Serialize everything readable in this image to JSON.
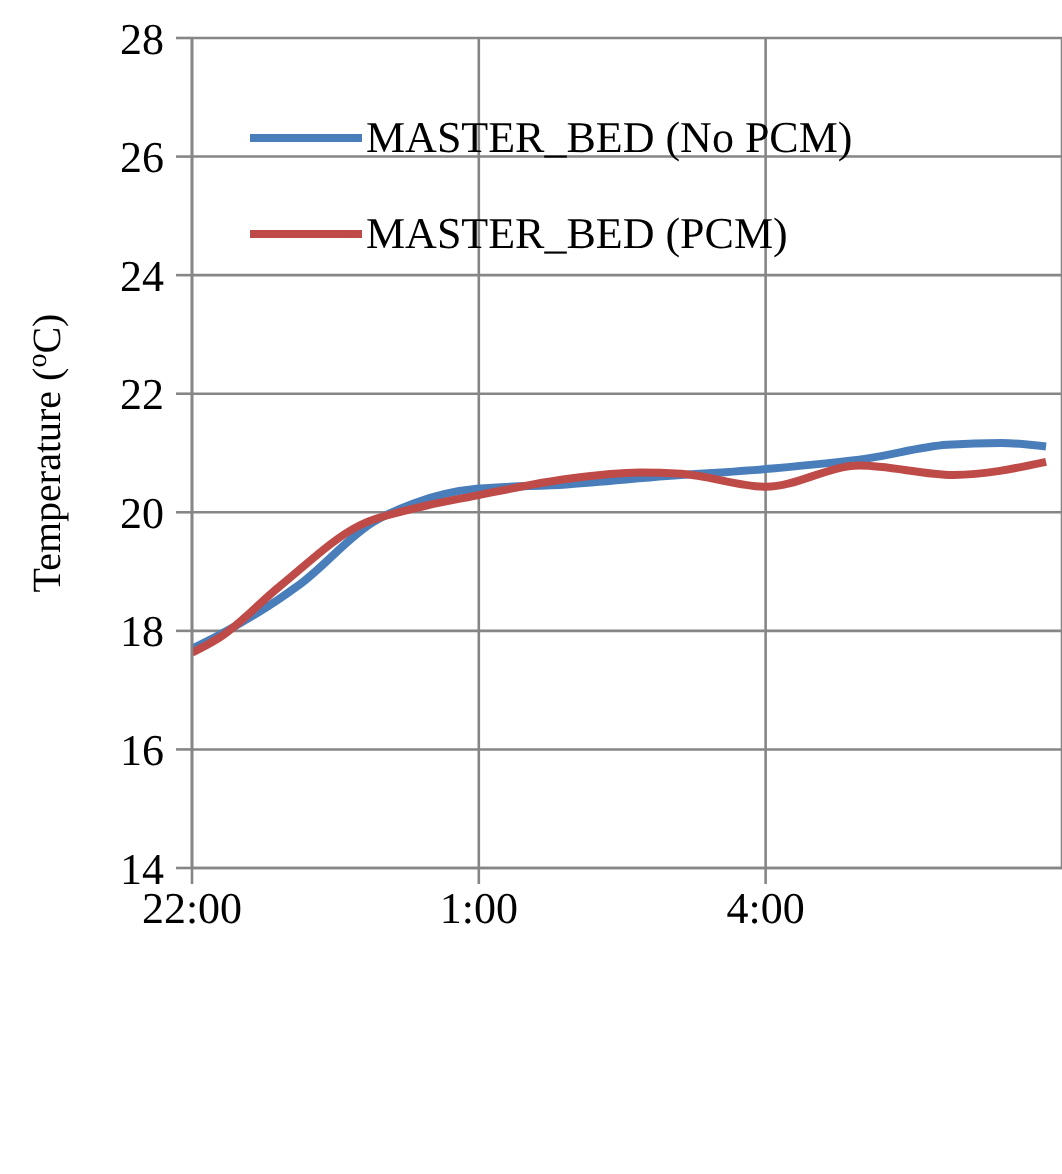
{
  "chart_data": {
    "type": "line",
    "ylabel": "Temperature ($^{o}$C)",
    "xlim": [
      "--01-01T22:00",
      "--01-02T07:06"
    ],
    "xticks": [
      {
        "value": "--01-01T22:00",
        "label": "22:00"
      },
      {
        "value": "--01-02T01:00",
        "label": "1:00"
      },
      {
        "value": "--01-02T04:00",
        "label": "4:00"
      }
    ],
    "ylim": [
      14,
      28
    ],
    "yticks": [
      14,
      16,
      18,
      20,
      22,
      24,
      26,
      28
    ],
    "grid": true,
    "legend": "top",
    "marker": "none",
    "line_style": "solid",
    "series": [
      {
        "name": "MASTER_BED (No PCM)",
        "color": "#4a7ebb",
        "x": [
          "--01-01T22:00",
          "--01-01T22:17",
          "--01-01T23:08",
          "--01-01T23:54",
          "--01-02T00:19",
          "--01-02T01:00",
          "--01-02T01:55",
          "--01-02T02:58",
          "--01-02T04:00",
          "--01-02T05:04",
          "--01-02T05:54",
          "--01-02T06:28",
          "--01-02T06:56"
        ],
        "values": [
          17.7,
          17.93,
          18.79,
          19.84,
          20.15,
          20.4,
          20.47,
          20.61,
          20.73,
          20.91,
          21.14,
          21.17,
          21.11
        ]
      },
      {
        "name": "MASTER_BED (PCM)",
        "color": "#be4b48",
        "x": [
          "--01-01T22:00",
          "--01-01T22:17",
          "--01-01T22:55",
          "--01-01T23:46",
          "--01-02T00:19",
          "--01-02T01:00",
          "--01-02T01:55",
          "--01-02T02:41",
          "--01-02T03:07",
          "--01-02T04:00",
          "--01-02T04:59",
          "--01-02T05:58",
          "--01-02T06:56"
        ],
        "values": [
          17.63,
          17.88,
          18.75,
          19.79,
          20.06,
          20.29,
          20.56,
          20.67,
          20.65,
          20.43,
          20.79,
          20.63,
          20.85
        ]
      }
    ]
  }
}
